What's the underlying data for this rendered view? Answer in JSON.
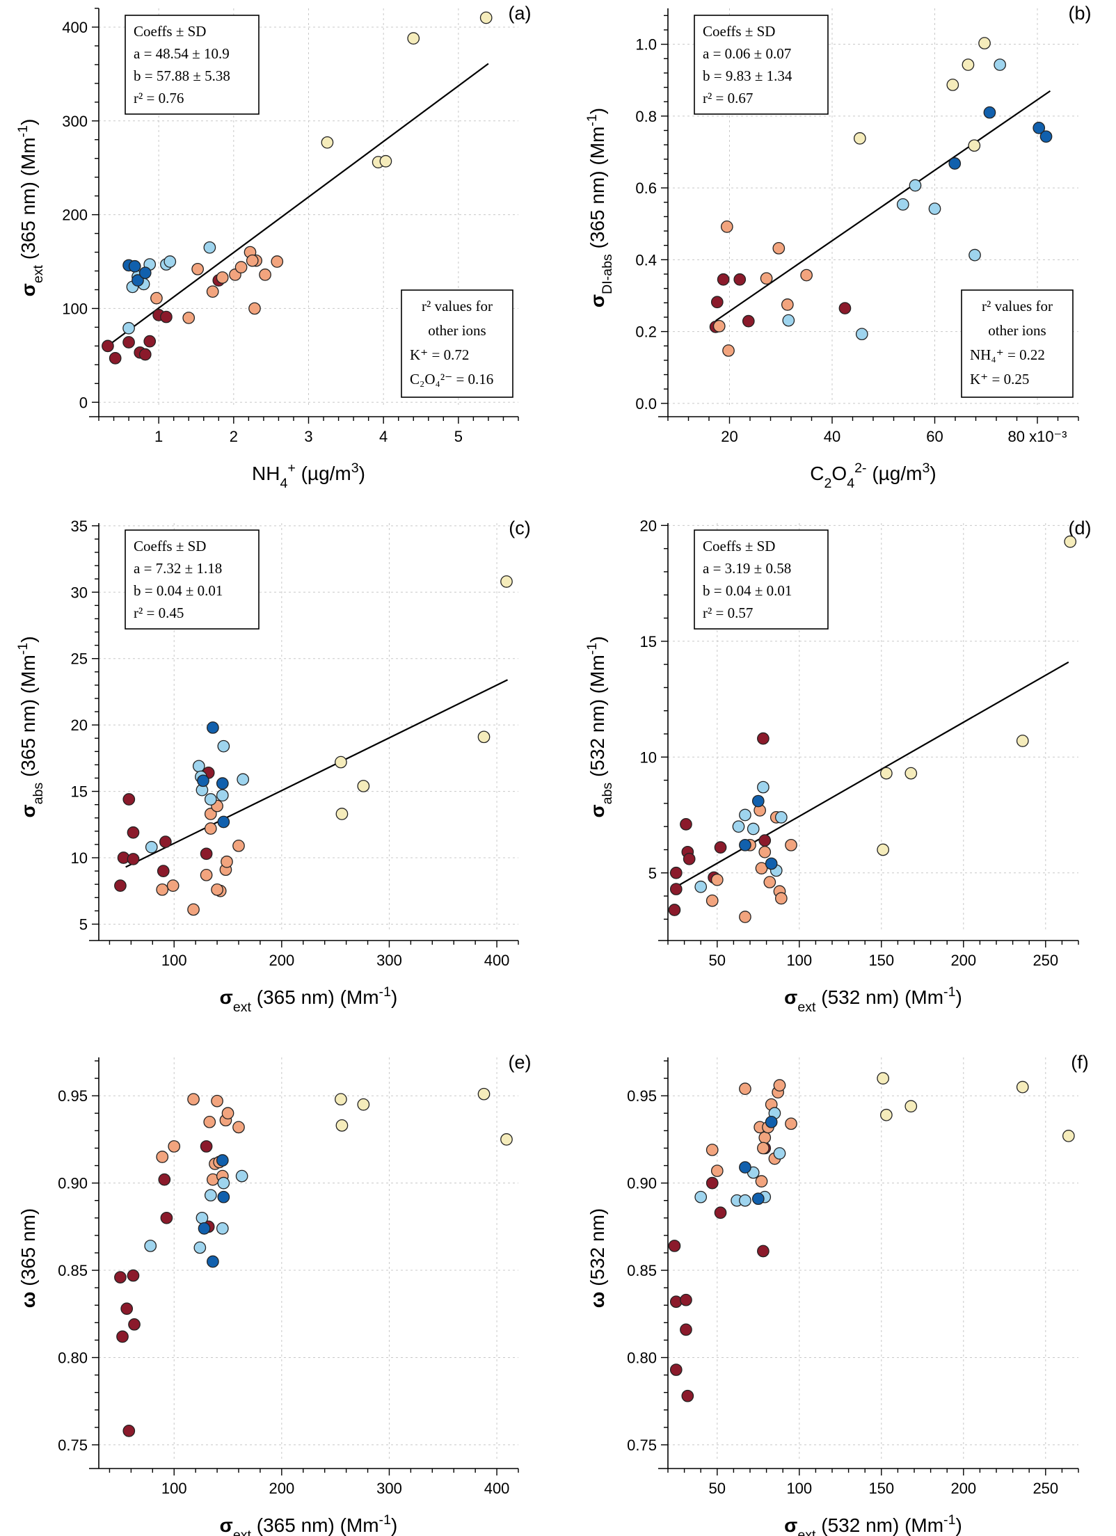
{
  "colors": {
    "dark_red": "#8b1a2b",
    "light_orange": "#f2a47e",
    "pale_yellow": "#f5ecbb",
    "light_blue": "#9ed4ee",
    "dark_blue": "#1160ad",
    "grid": "#c8c8c8"
  },
  "chart_data": [
    {
      "id": "a",
      "type": "scatter",
      "panel_label": "(a)",
      "xlabel_parts": [
        "NH",
        "4",
        "+",
        " (µg/m",
        "3",
        ")"
      ],
      "ylabel_parts": [
        "σ",
        "ext",
        " (365 nm) (Mm",
        "-1",
        ")"
      ],
      "xlim": [
        0.2,
        5.8
      ],
      "ylim": [
        -5,
        420
      ],
      "xticks": [
        1,
        2,
        3,
        4,
        5
      ],
      "xtick_labels": [
        "1",
        "2",
        "3",
        "4",
        "5"
      ],
      "yticks": [
        0,
        100,
        200,
        300,
        400
      ],
      "ytick_labels": [
        "0",
        "100",
        "200",
        "300",
        "400"
      ],
      "fit_line": {
        "x": [
          0.3,
          5.4
        ],
        "y": [
          59,
          361
        ]
      },
      "coeff_box": {
        "lines": [
          "Coeffs ± SD",
          "a = 48.54 ± 10.9",
          "b = 57.88 ± 5.38",
          "r² = 0.76"
        ],
        "position": "top-left"
      },
      "r2_box": {
        "lines": [
          "r² values for",
          "other ions",
          "K⁺ = 0.72",
          "C₂O₄²⁻ = 0.16"
        ],
        "position": "bottom-right"
      },
      "series": [
        {
          "name": "dark_red",
          "x": [
            0.32,
            0.42,
            0.6,
            0.75,
            0.82,
            0.88,
            1.0,
            1.1,
            1.8
          ],
          "y": [
            60,
            47,
            64,
            53,
            51,
            65,
            93,
            91,
            130
          ]
        },
        {
          "name": "light_orange",
          "x": [
            0.97,
            1.4,
            1.52,
            1.72,
            1.85,
            2.02,
            2.1,
            2.22,
            2.3,
            2.25,
            2.42,
            2.58,
            2.28
          ],
          "y": [
            111,
            90,
            142,
            118,
            133,
            136,
            144,
            160,
            151,
            151,
            136,
            150,
            100
          ]
        },
        {
          "name": "pale_yellow",
          "x": [
            3.25,
            3.93,
            4.03,
            4.4,
            5.37
          ],
          "y": [
            277,
            256,
            257,
            388,
            410
          ]
        },
        {
          "name": "light_blue",
          "x": [
            0.6,
            0.65,
            0.72,
            0.8,
            0.88,
            1.1,
            1.15,
            1.68
          ],
          "y": [
            79,
            123,
            134,
            126,
            147,
            147,
            150,
            165
          ]
        },
        {
          "name": "dark_blue",
          "x": [
            0.6,
            0.68,
            0.72,
            0.82
          ],
          "y": [
            146,
            145,
            130,
            138
          ]
        }
      ]
    },
    {
      "id": "b",
      "type": "scatter",
      "panel_label": "(b)",
      "xlabel_parts": [
        "C",
        "2",
        "O",
        "4",
        "2-",
        " (µg/m",
        "3",
        ")"
      ],
      "ylabel_parts": [
        "σ",
        "DI-abs",
        " (365 nm) (Mm",
        "-1",
        ")"
      ],
      "xlim": [
        0.008,
        0.088
      ],
      "ylim": [
        -0.01,
        1.1
      ],
      "xticks": [
        0.02,
        0.04,
        0.06,
        0.08
      ],
      "xtick_labels": [
        "20",
        "40",
        "60",
        "80 x10⁻³"
      ],
      "yticks": [
        0,
        0.2,
        0.4,
        0.6,
        0.8,
        1.0
      ],
      "ytick_labels": [
        "0.0",
        "0.2",
        "0.4",
        "0.6",
        "0.8",
        "1.0"
      ],
      "fit_line": {
        "x": [
          0.0173,
          0.0825
        ],
        "y": [
          0.23,
          0.87
        ]
      },
      "coeff_box": {
        "lines": [
          "Coeffs ± SD",
          "a = 0.06 ± 0.07",
          "b = 9.83 ± 1.34",
          "r² = 0.67"
        ],
        "position": "top-left"
      },
      "r2_box": {
        "lines": [
          "r² values for",
          "other ions",
          "NH₄⁺ = 0.22",
          "K⁺ = 0.25"
        ],
        "position": "bottom-right"
      },
      "series": [
        {
          "name": "dark_red",
          "x": [
            0.0173,
            0.0176,
            0.0188,
            0.022,
            0.0237,
            0.0425
          ],
          "y": [
            0.213,
            0.282,
            0.345,
            0.345,
            0.229,
            0.265
          ]
        },
        {
          "name": "light_orange",
          "x": [
            0.018,
            0.0195,
            0.0198,
            0.0272,
            0.0296,
            0.0313,
            0.035
          ],
          "y": [
            0.215,
            0.492,
            0.147,
            0.348,
            0.432,
            0.275,
            0.357
          ]
        },
        {
          "name": "pale_yellow",
          "x": [
            0.0454,
            0.0635,
            0.0665,
            0.0677,
            0.0697
          ],
          "y": [
            0.738,
            0.887,
            0.943,
            0.718,
            1.003
          ]
        },
        {
          "name": "light_blue",
          "x": [
            0.0315,
            0.0458,
            0.0538,
            0.0562,
            0.06,
            0.0678,
            0.0727
          ],
          "y": [
            0.231,
            0.193,
            0.554,
            0.607,
            0.542,
            0.413,
            0.943
          ]
        },
        {
          "name": "dark_blue",
          "x": [
            0.0639,
            0.0707,
            0.0803,
            0.0817
          ],
          "y": [
            0.668,
            0.81,
            0.767,
            0.743
          ]
        }
      ]
    },
    {
      "id": "c",
      "type": "scatter",
      "panel_label": "(c)",
      "xlabel_parts": [
        "σ",
        "ext",
        " (365 nm) (Mm",
        "-1",
        ")"
      ],
      "ylabel_parts": [
        "σ",
        "abs",
        " (365 nm) (Mm",
        "-1",
        ")"
      ],
      "xlim": [
        30,
        420
      ],
      "ylim": [
        4.5,
        35.2
      ],
      "xticks": [
        100,
        200,
        300,
        400
      ],
      "xtick_labels": [
        "100",
        "200",
        "300",
        "400"
      ],
      "yticks": [
        5,
        10,
        15,
        20,
        25,
        30,
        35
      ],
      "ytick_labels": [
        "5",
        "10",
        "15",
        "20",
        "25",
        "30",
        "35"
      ],
      "fit_line": {
        "x": [
          55,
          410
        ],
        "y": [
          9.3,
          23.4
        ]
      },
      "coeff_box": {
        "lines": [
          "Coeffs ± SD",
          "a = 7.32 ± 1.18",
          "b = 0.04 ± 0.01",
          "r² = 0.45"
        ],
        "position": "top-left"
      },
      "r2_box": null,
      "series": [
        {
          "name": "dark_red",
          "x": [
            50,
            53,
            58,
            62,
            62,
            90,
            92,
            130,
            132
          ],
          "y": [
            7.9,
            10.0,
            14.4,
            11.9,
            9.9,
            9.0,
            11.2,
            10.3,
            16.4
          ]
        },
        {
          "name": "light_orange",
          "x": [
            89,
            99,
            118,
            130,
            134,
            134,
            140,
            143,
            148,
            149,
            160,
            140
          ],
          "y": [
            7.6,
            7.9,
            6.1,
            8.7,
            13.3,
            12.2,
            13.9,
            7.5,
            9.1,
            9.7,
            10.9,
            7.6
          ]
        },
        {
          "name": "pale_yellow",
          "x": [
            255,
            256,
            276,
            388,
            409
          ],
          "y": [
            17.2,
            13.3,
            15.4,
            19.1,
            30.8
          ]
        },
        {
          "name": "light_blue",
          "x": [
            79,
            123,
            126,
            134,
            145,
            146,
            164,
            125
          ],
          "y": [
            10.8,
            16.9,
            15.1,
            14.4,
            14.7,
            18.4,
            15.9,
            16.1
          ]
        },
        {
          "name": "dark_blue",
          "x": [
            136,
            145,
            146,
            127
          ],
          "y": [
            19.8,
            15.6,
            12.7,
            15.8
          ]
        }
      ]
    },
    {
      "id": "d",
      "type": "scatter",
      "panel_label": "(d)",
      "xlabel_parts": [
        "σ",
        "ext",
        " (532 nm) (Mm",
        "-1",
        ")"
      ],
      "ylabel_parts": [
        "σ",
        "abs",
        " (532 nm) (Mm",
        "-1",
        ")"
      ],
      "xlim": [
        20,
        270
      ],
      "ylim": [
        2.5,
        20.1
      ],
      "xticks": [
        50,
        100,
        150,
        200,
        250
      ],
      "xtick_labels": [
        "50",
        "100",
        "150",
        "200",
        "250"
      ],
      "yticks": [
        5,
        10,
        15,
        20
      ],
      "ytick_labels": [
        "5",
        "10",
        "15",
        "20"
      ],
      "fit_line": {
        "x": [
          25,
          264
        ],
        "y": [
          4.4,
          14.1
        ]
      },
      "coeff_box": {
        "lines": [
          "Coeffs ± SD",
          "a = 3.19 ± 0.58",
          "b = 0.04 ± 0.01",
          "r² = 0.57"
        ],
        "position": "top-left"
      },
      "r2_box": null,
      "series": [
        {
          "name": "dark_red",
          "x": [
            24,
            25,
            25,
            31,
            32,
            33,
            48,
            52,
            78,
            79
          ],
          "y": [
            3.4,
            4.3,
            5.0,
            7.1,
            5.9,
            5.6,
            4.8,
            6.1,
            10.8,
            6.4
          ]
        },
        {
          "name": "light_orange",
          "x": [
            47,
            50,
            67,
            76,
            77,
            79,
            82,
            86,
            88,
            89,
            95,
            70
          ],
          "y": [
            3.8,
            4.7,
            3.1,
            7.7,
            5.2,
            5.9,
            4.6,
            7.4,
            4.2,
            3.9,
            6.2,
            6.2
          ]
        },
        {
          "name": "pale_yellow",
          "x": [
            151,
            153,
            168,
            236,
            265
          ],
          "y": [
            6.0,
            9.3,
            9.3,
            10.7,
            19.3
          ]
        },
        {
          "name": "light_blue",
          "x": [
            40,
            63,
            67,
            72,
            78,
            86,
            89
          ],
          "y": [
            4.4,
            7.0,
            7.5,
            6.9,
            8.7,
            5.1,
            7.4
          ]
        },
        {
          "name": "dark_blue",
          "x": [
            67,
            75,
            83
          ],
          "y": [
            6.2,
            8.1,
            5.4
          ]
        }
      ]
    },
    {
      "id": "e",
      "type": "scatter",
      "panel_label": "(e)",
      "xlabel_parts": [
        "σ",
        "ext",
        " (365 nm) (Mm",
        "-1",
        ")"
      ],
      "ylabel_parts": [
        "ω",
        "",
        " (365 nm)",
        "",
        ""
      ],
      "xlim": [
        30,
        420
      ],
      "ylim": [
        0.742,
        0.972
      ],
      "xticks": [
        100,
        200,
        300,
        400
      ],
      "xtick_labels": [
        "100",
        "200",
        "300",
        "400"
      ],
      "yticks": [
        0.75,
        0.8,
        0.85,
        0.9,
        0.95
      ],
      "ytick_labels": [
        "0.75",
        "0.80",
        "0.85",
        "0.90",
        "0.95"
      ],
      "fit_line": null,
      "coeff_box": null,
      "r2_box": null,
      "series": [
        {
          "name": "dark_red",
          "x": [
            50,
            52,
            56,
            58,
            62,
            63,
            91,
            93,
            130,
            132
          ],
          "y": [
            0.846,
            0.812,
            0.828,
            0.758,
            0.847,
            0.819,
            0.902,
            0.88,
            0.921,
            0.875
          ]
        },
        {
          "name": "light_orange",
          "x": [
            89,
            100,
            118,
            133,
            136,
            138,
            140,
            142,
            145,
            148,
            150,
            160
          ],
          "y": [
            0.915,
            0.921,
            0.948,
            0.935,
            0.902,
            0.911,
            0.947,
            0.912,
            0.904,
            0.936,
            0.94,
            0.932
          ]
        },
        {
          "name": "pale_yellow",
          "x": [
            255,
            256,
            276,
            388,
            409
          ],
          "y": [
            0.948,
            0.933,
            0.945,
            0.951,
            0.925
          ]
        },
        {
          "name": "light_blue",
          "x": [
            78,
            124,
            126,
            134,
            145,
            146,
            163
          ],
          "y": [
            0.864,
            0.863,
            0.88,
            0.893,
            0.874,
            0.9,
            0.904
          ]
        },
        {
          "name": "dark_blue",
          "x": [
            128,
            136,
            145,
            146
          ],
          "y": [
            0.874,
            0.855,
            0.913,
            0.892
          ]
        }
      ]
    },
    {
      "id": "f",
      "type": "scatter",
      "panel_label": "(f)",
      "xlabel_parts": [
        "σ",
        "ext",
        " (532 nm) (Mm",
        "-1",
        ")"
      ],
      "ylabel_parts": [
        "ω",
        "",
        " (532 nm)",
        "",
        ""
      ],
      "xlim": [
        20,
        270
      ],
      "ylim": [
        0.742,
        0.972
      ],
      "xticks": [
        50,
        100,
        150,
        200,
        250
      ],
      "xtick_labels": [
        "50",
        "100",
        "150",
        "200",
        "250"
      ],
      "yticks": [
        0.75,
        0.8,
        0.85,
        0.9,
        0.95
      ],
      "ytick_labels": [
        "0.75",
        "0.80",
        "0.85",
        "0.90",
        "0.95"
      ],
      "fit_line": null,
      "coeff_box": null,
      "r2_box": null,
      "series": [
        {
          "name": "dark_red",
          "x": [
            24,
            25,
            25,
            31,
            31,
            32,
            47,
            52,
            78,
            79
          ],
          "y": [
            0.864,
            0.832,
            0.793,
            0.816,
            0.833,
            0.778,
            0.9,
            0.883,
            0.861,
            0.92
          ]
        },
        {
          "name": "light_orange",
          "x": [
            47,
            50,
            67,
            76,
            77,
            79,
            81,
            83,
            85,
            87,
            88,
            95,
            78
          ],
          "y": [
            0.919,
            0.907,
            0.954,
            0.932,
            0.901,
            0.926,
            0.932,
            0.945,
            0.914,
            0.952,
            0.956,
            0.934,
            0.92
          ]
        },
        {
          "name": "pale_yellow",
          "x": [
            151,
            153,
            168,
            236,
            264
          ],
          "y": [
            0.96,
            0.939,
            0.944,
            0.955,
            0.927
          ]
        },
        {
          "name": "light_blue",
          "x": [
            40,
            62,
            67,
            72,
            79,
            85,
            88
          ],
          "y": [
            0.892,
            0.89,
            0.89,
            0.906,
            0.892,
            0.94,
            0.917
          ]
        },
        {
          "name": "dark_blue",
          "x": [
            67,
            75,
            83
          ],
          "y": [
            0.909,
            0.891,
            0.935
          ]
        }
      ]
    }
  ]
}
